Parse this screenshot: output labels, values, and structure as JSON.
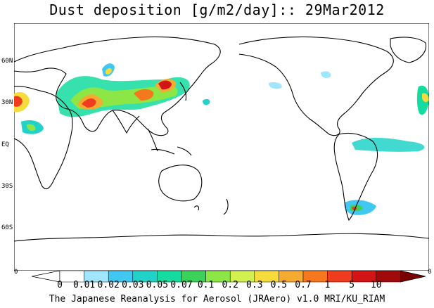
{
  "title": "Dust deposition [g/m2/day]:: 29Mar2012",
  "footer": "The Japanese Reanalysis for Aerosol (JRAero) v1.0 MRI/KU_RIAM",
  "lat_labels": [
    "60N",
    "30N",
    "EQ",
    "30S",
    "60S"
  ],
  "axis_zero": "0",
  "colorbar": {
    "levels": [
      "0",
      "0.01",
      "0.02",
      "0.03",
      "0.05",
      "0.07",
      "0.1",
      "0.2",
      "0.3",
      "0.5",
      "0.7",
      "1",
      "5",
      "10"
    ],
    "colors": [
      "#ffffff",
      "#a0e6ff",
      "#40c8f0",
      "#20d2c8",
      "#14dca0",
      "#3cd25a",
      "#8ce646",
      "#d2f050",
      "#f5dc3c",
      "#f5aa32",
      "#f5781e",
      "#f03c1e",
      "#d21414",
      "#a00a0a",
      "#780000"
    ]
  }
}
